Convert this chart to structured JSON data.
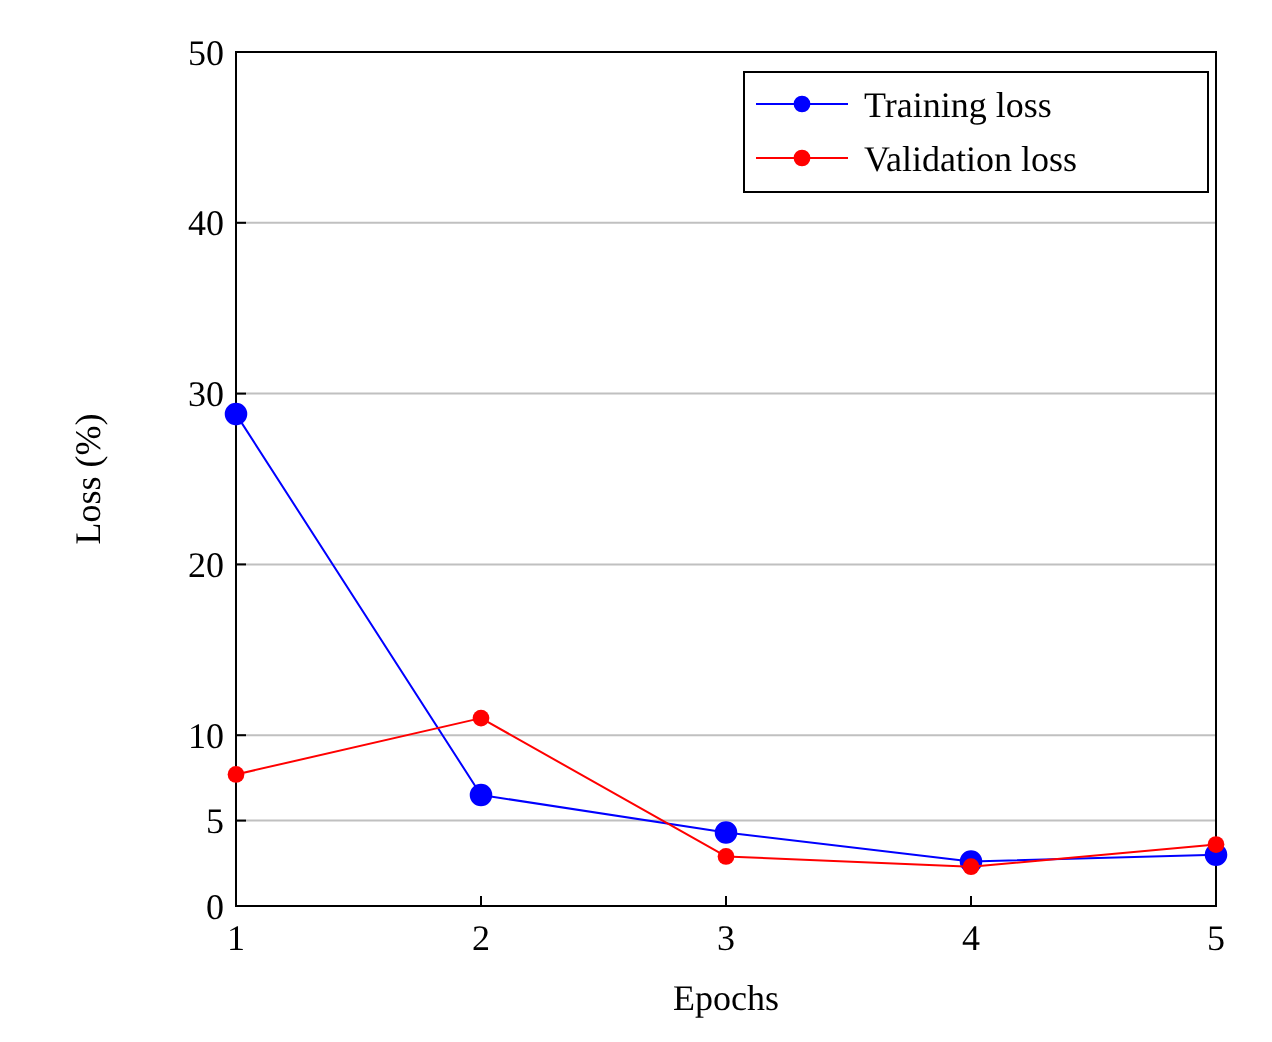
{
  "chart_data": {
    "type": "line",
    "xlabel": "Epochs",
    "ylabel": "Loss (%)",
    "x": [
      1,
      2,
      3,
      4,
      5
    ],
    "xlim": [
      1,
      5
    ],
    "xticks": [
      1,
      2,
      3,
      4,
      5
    ],
    "ylim": [
      0,
      50
    ],
    "yticks": [
      0,
      5,
      10,
      20,
      30,
      40,
      50
    ],
    "grid": "y",
    "legend": "top right",
    "marker": "circle",
    "line_style": "solid",
    "series": [
      {
        "name": "Training loss",
        "color": "#0000ff",
        "values": [
          28.8,
          6.5,
          4.3,
          2.6,
          3.0
        ]
      },
      {
        "name": "Validation loss",
        "color": "#ff0000",
        "values": [
          7.7,
          11.0,
          2.9,
          2.3,
          3.6
        ]
      }
    ]
  }
}
